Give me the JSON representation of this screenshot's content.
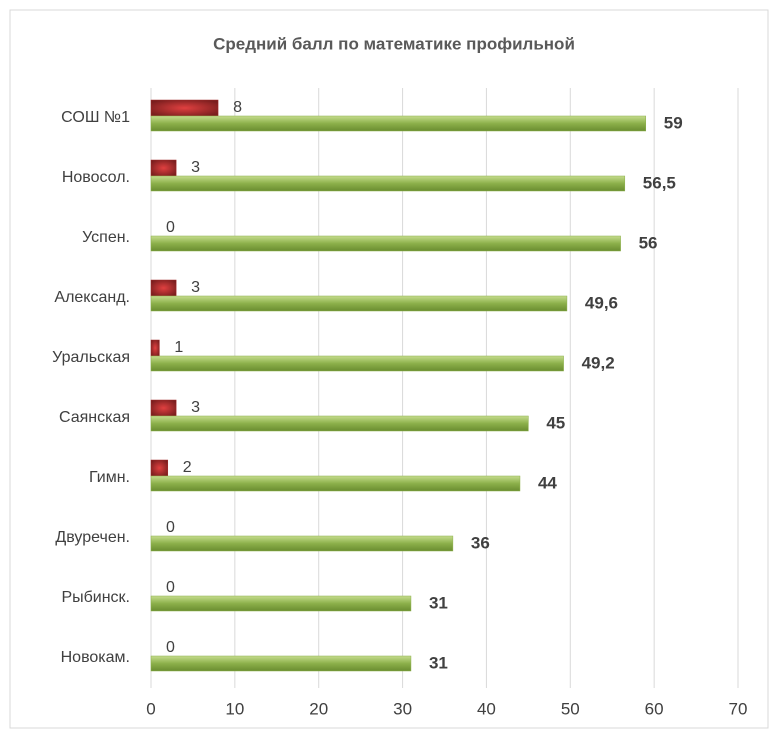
{
  "chart_data": {
    "type": "bar",
    "orientation": "horizontal",
    "title": "Средний балл по  математике  профильной",
    "categories": [
      "СОШ №1",
      "Новосол.",
      "Успен.",
      "Александ.",
      "Уральская",
      "Саянская",
      "Гимн.",
      "Двуречен.",
      "Рыбинск.",
      "Новокам."
    ],
    "series": [
      {
        "color": "#a32a2a",
        "values": [
          8,
          3,
          0,
          3,
          1,
          3,
          2,
          0,
          0,
          0
        ]
      },
      {
        "color": "#8cb04a",
        "values": [
          59,
          56.5,
          56,
          49.6,
          49.2,
          45,
          44,
          36,
          31,
          31
        ],
        "value_labels": [
          "59",
          "56,5",
          "56",
          "49,6",
          "49,2",
          "45",
          "44",
          "36",
          "31",
          "31"
        ]
      }
    ],
    "xlim": [
      0,
      70
    ],
    "xticks": [
      0,
      10,
      20,
      30,
      40,
      50,
      60,
      70
    ],
    "grid": true
  }
}
